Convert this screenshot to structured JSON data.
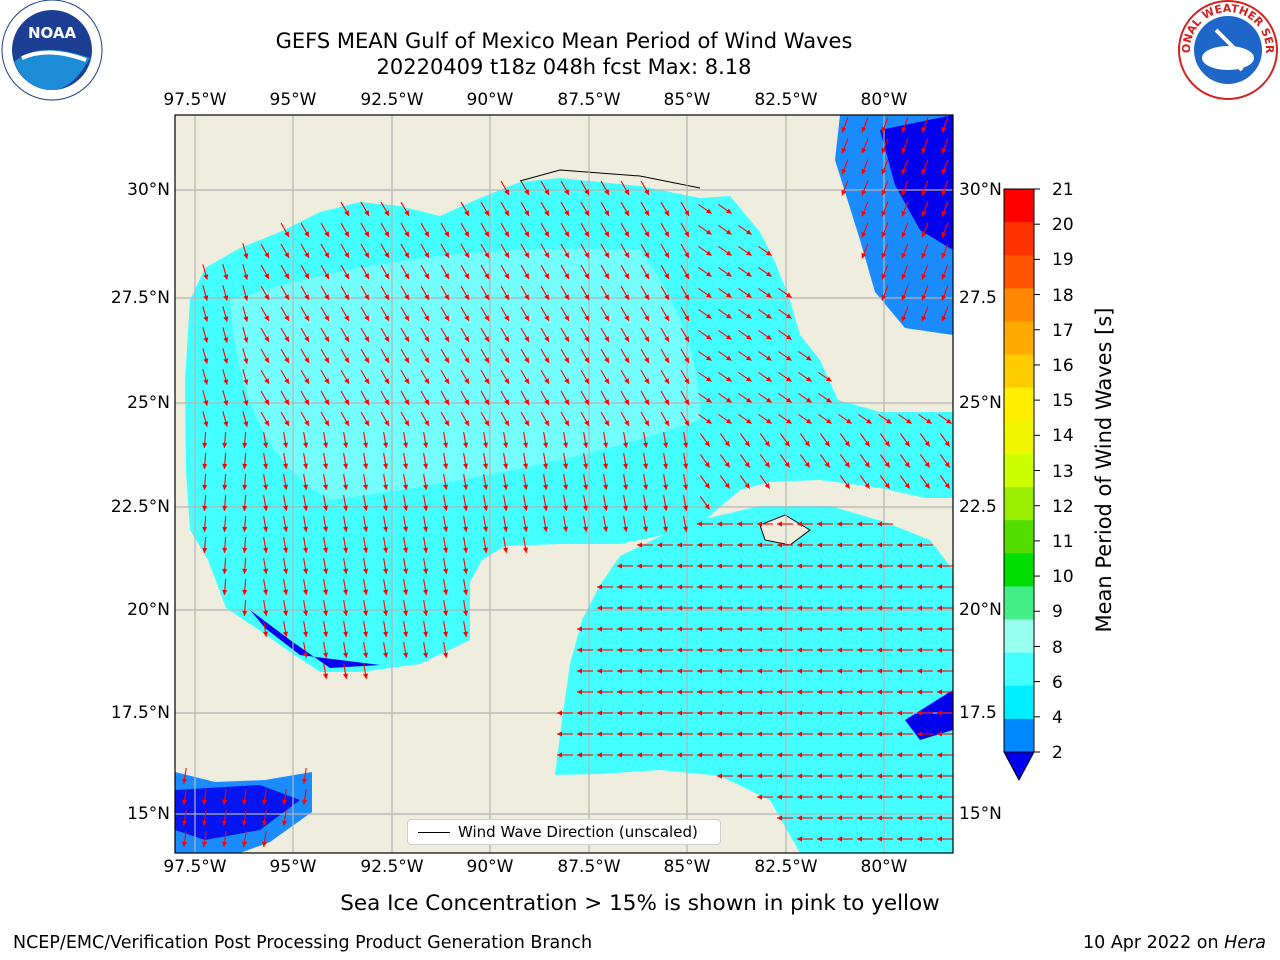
{
  "titles": {
    "line1": "GEFS MEAN Gulf of Mexico Mean Period of Wind Waves",
    "line2": "20220409 t18z 048h fcst   Max: 8.18"
  },
  "axes": {
    "lon_ticks": [
      "97.5°W",
      "95°W",
      "92.5°W",
      "90°W",
      "87.5°W",
      "85°W",
      "82.5°W",
      "80°W"
    ],
    "lat_ticks_left": [
      "30°N",
      "27.5°N",
      "25°N",
      "22.5°N",
      "20°N",
      "17.5°N",
      "15°N"
    ],
    "lat_ticks_right": [
      "30°N",
      "27.5",
      "25°N",
      "22.5",
      "20°N",
      "17.5",
      "15°N"
    ]
  },
  "legend": {
    "label": "Wind Wave Direction (unscaled)"
  },
  "colorbar": {
    "label": "Mean Period of Wind Waves [s]",
    "ticks": [
      "21",
      "20",
      "19",
      "18",
      "17",
      "16",
      "15",
      "14",
      "13",
      "12",
      "11",
      "10",
      "9",
      "8",
      "6",
      "4",
      "2"
    ],
    "colors": [
      "#ff0000",
      "#ff3300",
      "#ff5500",
      "#ff8800",
      "#ffaa00",
      "#ffcc00",
      "#ffee00",
      "#f0f500",
      "#ccff00",
      "#99ee00",
      "#55dd00",
      "#00dd00",
      "#44ee88",
      "#99ffee",
      "#44ffff",
      "#00eeff",
      "#0088ff",
      "#0000ee"
    ]
  },
  "ice_note": "Sea Ice Concentration > 15% is shown in pink to yellow",
  "footer": {
    "left": "NCEP/EMC/Verification Post Processing Product Generation Branch",
    "date": "10 Apr 2022 on ",
    "host": "Hera"
  },
  "logos": {
    "noaa": "NOAA",
    "nws": "NATIONAL WEATHER SERVICE"
  },
  "palette": {
    "land": "#efedde",
    "sea_light": "#9cffff",
    "sea_mid": "#44ffff",
    "sea_deep": "#00e8ff",
    "wave_blue": "#1b8cff",
    "wave_dark": "#0000ee",
    "arrow": "#ff0000"
  }
}
